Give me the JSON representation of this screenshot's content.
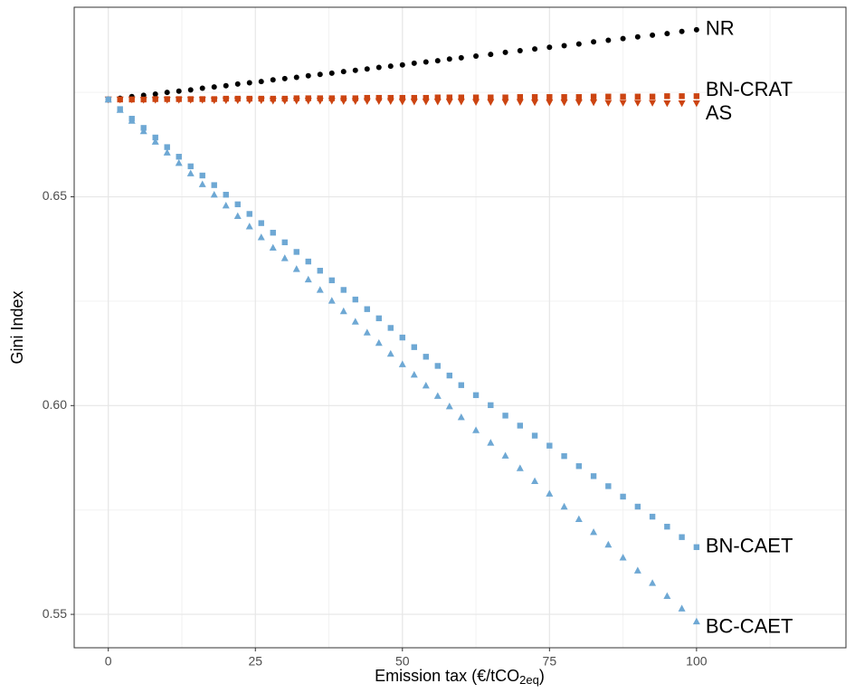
{
  "chart_data": {
    "type": "scatter",
    "x_label_parts": [
      "Emission tax (€/tCO",
      "2eq",
      ")"
    ],
    "y_label": "Gini Index",
    "x": [
      0,
      2,
      4,
      6,
      8,
      10,
      12,
      14,
      16,
      18,
      20,
      22,
      24,
      26,
      28,
      30,
      32,
      34,
      36,
      38,
      40,
      42,
      44,
      46,
      48,
      50,
      52,
      54,
      56,
      58,
      60,
      62.5,
      65,
      67.5,
      70,
      72.5,
      75,
      77.5,
      80,
      82.5,
      85,
      87.5,
      90,
      92.5,
      95,
      97.5,
      100
    ],
    "series": [
      {
        "name": "NR",
        "color": "#000000",
        "marker": "circle",
        "values": [
          0.6733,
          0.6736,
          0.674,
          0.6743,
          0.6746,
          0.675,
          0.6753,
          0.6756,
          0.676,
          0.6763,
          0.6766,
          0.677,
          0.6773,
          0.6776,
          0.678,
          0.6783,
          0.6786,
          0.679,
          0.6793,
          0.6796,
          0.68,
          0.6803,
          0.6806,
          0.681,
          0.6813,
          0.6816,
          0.682,
          0.6823,
          0.6826,
          0.683,
          0.6833,
          0.6837,
          0.6841,
          0.6846,
          0.685,
          0.6854,
          0.6858,
          0.6862,
          0.6866,
          0.6871,
          0.6875,
          0.6879,
          0.6883,
          0.6887,
          0.6891,
          0.6896,
          0.69
        ]
      },
      {
        "name": "BN-CRAT",
        "color": "#cc4411",
        "marker": "square",
        "values": [
          0.6733,
          0.6733,
          0.6733,
          0.6733,
          0.6734,
          0.6734,
          0.6734,
          0.6734,
          0.6734,
          0.6734,
          0.6735,
          0.6735,
          0.6735,
          0.6735,
          0.6735,
          0.6735,
          0.6736,
          0.6736,
          0.6736,
          0.6736,
          0.6736,
          0.6736,
          0.6737,
          0.6737,
          0.6737,
          0.6737,
          0.6737,
          0.6737,
          0.6738,
          0.6738,
          0.6738,
          0.6738,
          0.6738,
          0.6738,
          0.6739,
          0.6739,
          0.6739,
          0.6739,
          0.6739,
          0.674,
          0.674,
          0.674,
          0.674,
          0.674,
          0.6741,
          0.6741,
          0.6741
        ]
      },
      {
        "name": "AS",
        "color": "#cc4411",
        "marker": "triangle-down",
        "values": [
          0.6733,
          0.6733,
          0.6733,
          0.6732,
          0.6732,
          0.6732,
          0.6732,
          0.6732,
          0.6732,
          0.6731,
          0.6731,
          0.6731,
          0.6731,
          0.6731,
          0.673,
          0.673,
          0.673,
          0.673,
          0.673,
          0.673,
          0.6729,
          0.6729,
          0.6729,
          0.6729,
          0.6729,
          0.6728,
          0.6728,
          0.6728,
          0.6728,
          0.6728,
          0.6728,
          0.6727,
          0.6727,
          0.6727,
          0.6727,
          0.6726,
          0.6726,
          0.6726,
          0.6726,
          0.6726,
          0.6725,
          0.6725,
          0.6725,
          0.6725,
          0.6724,
          0.6724,
          0.6724
        ]
      },
      {
        "name": "BN-CAET",
        "color": "#6ea8d4",
        "marker": "square",
        "values": [
          0.6733,
          0.671,
          0.6687,
          0.6665,
          0.6642,
          0.6619,
          0.6596,
          0.6573,
          0.6551,
          0.6528,
          0.6505,
          0.6482,
          0.6459,
          0.6437,
          0.6414,
          0.6391,
          0.6368,
          0.6345,
          0.6323,
          0.63,
          0.6277,
          0.6254,
          0.6231,
          0.6209,
          0.6186,
          0.6163,
          0.614,
          0.6117,
          0.6095,
          0.6072,
          0.6049,
          0.6025,
          0.6001,
          0.5976,
          0.5952,
          0.5928,
          0.5904,
          0.5879,
          0.5855,
          0.5831,
          0.5807,
          0.5782,
          0.5758,
          0.5734,
          0.571,
          0.5685,
          0.5661
        ]
      },
      {
        "name": "BC-CAET",
        "color": "#6ea8d4",
        "marker": "triangle-up",
        "values": [
          0.6733,
          0.6708,
          0.6682,
          0.6657,
          0.6632,
          0.6606,
          0.6581,
          0.6556,
          0.653,
          0.6505,
          0.6479,
          0.6454,
          0.6429,
          0.6403,
          0.6378,
          0.6353,
          0.6327,
          0.6302,
          0.6277,
          0.6251,
          0.6226,
          0.6201,
          0.6175,
          0.615,
          0.6124,
          0.6099,
          0.6074,
          0.6048,
          0.6023,
          0.5998,
          0.5972,
          0.5941,
          0.5911,
          0.588,
          0.585,
          0.5819,
          0.5789,
          0.5758,
          0.5728,
          0.5697,
          0.5667,
          0.5636,
          0.5605,
          0.5575,
          0.5544,
          0.5514,
          0.5483
        ]
      }
    ],
    "xlim": [
      -5.8,
      125.4
    ],
    "ylim": [
      0.542,
      0.6954
    ],
    "xticks": [
      0,
      25,
      50,
      75,
      100
    ],
    "yticks": [
      0.55,
      {
        "value": 0.6,
        "label": "0.60"
      },
      0.65
    ],
    "grid": true,
    "minor_grid": true
  }
}
